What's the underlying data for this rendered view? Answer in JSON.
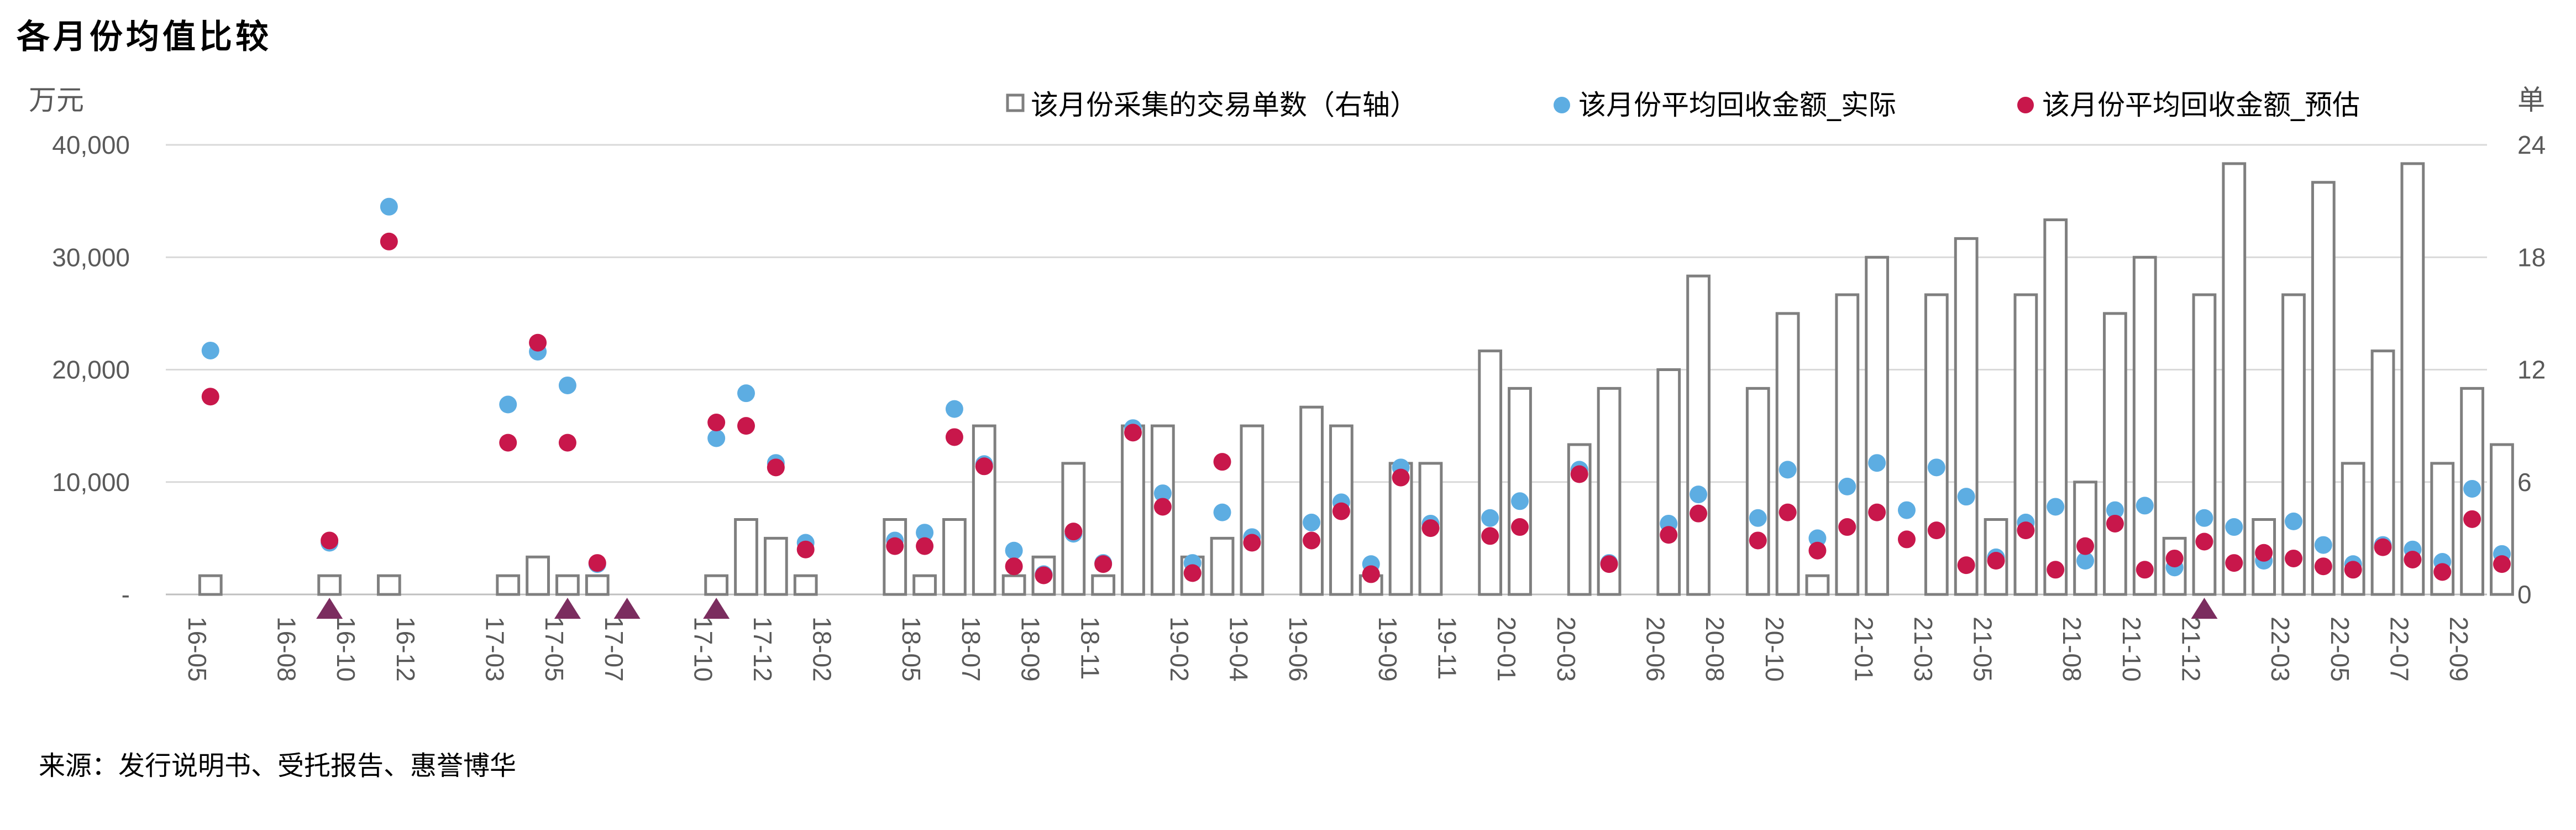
{
  "title": "各月份均值比较",
  "source": "来源：发行说明书、受托报告、惠誉博华",
  "chart_data": {
    "type": "bar",
    "left_unit": "万元",
    "right_unit": "单",
    "ylim_left": [
      0,
      40000
    ],
    "ylim_right": [
      0,
      24
    ],
    "left_ticks": [
      {
        "value": 0,
        "label": "-"
      },
      {
        "value": 10000,
        "label": "10,000"
      },
      {
        "value": 20000,
        "label": "20,000"
      },
      {
        "value": 30000,
        "label": "30,000"
      },
      {
        "value": 40000,
        "label": "40,000"
      }
    ],
    "right_ticks": [
      {
        "value": 0,
        "label": "0"
      },
      {
        "value": 6,
        "label": "6"
      },
      {
        "value": 12,
        "label": "12"
      },
      {
        "value": 18,
        "label": "18"
      },
      {
        "value": 24,
        "label": "24"
      }
    ],
    "grid": true,
    "legend_position": "top",
    "x_tick_labels": [
      "16-05",
      "16-08",
      "16-10",
      "16-12",
      "17-03",
      "17-05",
      "17-07",
      "17-10",
      "17-12",
      "18-02",
      "18-05",
      "18-07",
      "18-09",
      "18-11",
      "19-02",
      "19-04",
      "19-06",
      "19-09",
      "19-11",
      "20-01",
      "20-03",
      "20-06",
      "20-08",
      "20-10",
      "21-01",
      "21-03",
      "21-05",
      "21-08",
      "21-10",
      "21-12",
      "22-03",
      "22-05",
      "22-07",
      "22-09"
    ],
    "x_tick_slots": [
      0,
      3,
      5,
      7,
      10,
      12,
      14,
      17,
      19,
      21,
      24,
      26,
      28,
      30,
      33,
      35,
      37,
      40,
      42,
      44,
      46,
      49,
      51,
      53,
      56,
      58,
      60,
      63,
      65,
      67,
      70,
      72,
      74,
      76
    ],
    "slot_count": 78,
    "series": [
      {
        "name": "该月份采集的交易单数（右轴）",
        "kind": "bar",
        "axis": "right",
        "color": "#7f7f7f",
        "points": [
          [
            1,
            1
          ],
          [
            5,
            1
          ],
          [
            7,
            1
          ],
          [
            11,
            1
          ],
          [
            12,
            2
          ],
          [
            13,
            1
          ],
          [
            14,
            1
          ],
          [
            18,
            1
          ],
          [
            19,
            4
          ],
          [
            20,
            3
          ],
          [
            21,
            1
          ],
          [
            24,
            4
          ],
          [
            25,
            1
          ],
          [
            26,
            4
          ],
          [
            27,
            9
          ],
          [
            28,
            1
          ],
          [
            29,
            2
          ],
          [
            30,
            7
          ],
          [
            31,
            1
          ],
          [
            32,
            9
          ],
          [
            33,
            9
          ],
          [
            34,
            2
          ],
          [
            35,
            3
          ],
          [
            36,
            9
          ],
          [
            38,
            10
          ],
          [
            39,
            9
          ],
          [
            40,
            1
          ],
          [
            41,
            7
          ],
          [
            42,
            7
          ],
          [
            44,
            13
          ],
          [
            45,
            11
          ],
          [
            47,
            8
          ],
          [
            48,
            11
          ],
          [
            50,
            12
          ],
          [
            51,
            17
          ],
          [
            53,
            11
          ],
          [
            54,
            15
          ],
          [
            55,
            1
          ],
          [
            56,
            16
          ],
          [
            57,
            18
          ],
          [
            59,
            16
          ],
          [
            60,
            19
          ],
          [
            61,
            4
          ],
          [
            62,
            16
          ],
          [
            63,
            20
          ],
          [
            64,
            6
          ],
          [
            65,
            15
          ],
          [
            66,
            18
          ],
          [
            67,
            3
          ],
          [
            68,
            16
          ],
          [
            69,
            23
          ],
          [
            70,
            4
          ],
          [
            71,
            16
          ],
          [
            72,
            22
          ],
          [
            73,
            7
          ],
          [
            74,
            13
          ],
          [
            75,
            23
          ],
          [
            76,
            7
          ],
          [
            77,
            11
          ],
          [
            78,
            8
          ]
        ]
      },
      {
        "name": "该月份平均回收金额_实际",
        "kind": "dot",
        "axis": "left",
        "color": "#5dade2",
        "points": [
          [
            1,
            21700
          ],
          [
            5,
            4600
          ],
          [
            7,
            34500
          ],
          [
            11,
            16900
          ],
          [
            12,
            21600
          ],
          [
            13,
            18600
          ],
          [
            14,
            2700
          ],
          [
            18,
            13900
          ],
          [
            19,
            17900
          ],
          [
            20,
            11700
          ],
          [
            21,
            4600
          ],
          [
            24,
            4800
          ],
          [
            25,
            5500
          ],
          [
            26,
            16500
          ],
          [
            27,
            11600
          ],
          [
            28,
            3900
          ],
          [
            29,
            1800
          ],
          [
            30,
            5400
          ],
          [
            31,
            2800
          ],
          [
            32,
            14800
          ],
          [
            33,
            9000
          ],
          [
            34,
            2800
          ],
          [
            35,
            7300
          ],
          [
            36,
            5100
          ],
          [
            38,
            6400
          ],
          [
            39,
            8200
          ],
          [
            40,
            2700
          ],
          [
            41,
            11300
          ],
          [
            42,
            6300
          ],
          [
            44,
            6800
          ],
          [
            45,
            8300
          ],
          [
            47,
            11100
          ],
          [
            48,
            2800
          ],
          [
            50,
            6300
          ],
          [
            51,
            8900
          ],
          [
            53,
            6800
          ],
          [
            54,
            11100
          ],
          [
            55,
            5000
          ],
          [
            56,
            9600
          ],
          [
            57,
            11700
          ],
          [
            58,
            7500
          ],
          [
            59,
            11300
          ],
          [
            60,
            8700
          ],
          [
            61,
            3300
          ],
          [
            62,
            6400
          ],
          [
            63,
            7800
          ],
          [
            64,
            3000
          ],
          [
            65,
            7500
          ],
          [
            66,
            7900
          ],
          [
            67,
            2400
          ],
          [
            68,
            6800
          ],
          [
            69,
            6000
          ],
          [
            70,
            3000
          ],
          [
            71,
            6500
          ],
          [
            72,
            4400
          ],
          [
            73,
            2700
          ],
          [
            74,
            4400
          ],
          [
            75,
            4000
          ],
          [
            76,
            2900
          ],
          [
            77,
            9400
          ],
          [
            78,
            3600
          ]
        ]
      },
      {
        "name": "该月份平均回收金额_预估",
        "kind": "dot",
        "axis": "left",
        "color": "#c8174b",
        "points": [
          [
            1,
            17600
          ],
          [
            5,
            4800
          ],
          [
            7,
            31400
          ],
          [
            11,
            13500
          ],
          [
            12,
            22400
          ],
          [
            13,
            13500
          ],
          [
            14,
            2800
          ],
          [
            18,
            15300
          ],
          [
            19,
            15000
          ],
          [
            20,
            11300
          ],
          [
            21,
            4000
          ],
          [
            24,
            4300
          ],
          [
            25,
            4300
          ],
          [
            26,
            14000
          ],
          [
            27,
            11400
          ],
          [
            28,
            2500
          ],
          [
            29,
            1700
          ],
          [
            30,
            5600
          ],
          [
            31,
            2700
          ],
          [
            32,
            14400
          ],
          [
            33,
            7800
          ],
          [
            34,
            1900
          ],
          [
            35,
            11800
          ],
          [
            36,
            4600
          ],
          [
            38,
            4800
          ],
          [
            39,
            7400
          ],
          [
            40,
            1800
          ],
          [
            41,
            10400
          ],
          [
            42,
            5900
          ],
          [
            44,
            5200
          ],
          [
            45,
            6000
          ],
          [
            47,
            10700
          ],
          [
            48,
            2700
          ],
          [
            50,
            5300
          ],
          [
            51,
            7200
          ],
          [
            53,
            4800
          ],
          [
            54,
            7300
          ],
          [
            55,
            3900
          ],
          [
            56,
            6000
          ],
          [
            57,
            7300
          ],
          [
            58,
            4900
          ],
          [
            59,
            5700
          ],
          [
            60,
            2600
          ],
          [
            61,
            3000
          ],
          [
            62,
            5700
          ],
          [
            63,
            2200
          ],
          [
            64,
            4300
          ],
          [
            65,
            6300
          ],
          [
            66,
            2200
          ],
          [
            67,
            3200
          ],
          [
            68,
            4700
          ],
          [
            69,
            2800
          ],
          [
            70,
            3700
          ],
          [
            71,
            3200
          ],
          [
            72,
            2500
          ],
          [
            73,
            2200
          ],
          [
            74,
            4200
          ],
          [
            75,
            3100
          ],
          [
            76,
            2000
          ],
          [
            77,
            6700
          ],
          [
            78,
            2700
          ]
        ]
      },
      {
        "name": "",
        "kind": "triangle-marker",
        "axis": "left",
        "color": "#7b2d5f",
        "points": [
          [
            5,
            0
          ],
          [
            13,
            0
          ],
          [
            15,
            0
          ],
          [
            18,
            0
          ],
          [
            68,
            0
          ]
        ]
      }
    ]
  }
}
